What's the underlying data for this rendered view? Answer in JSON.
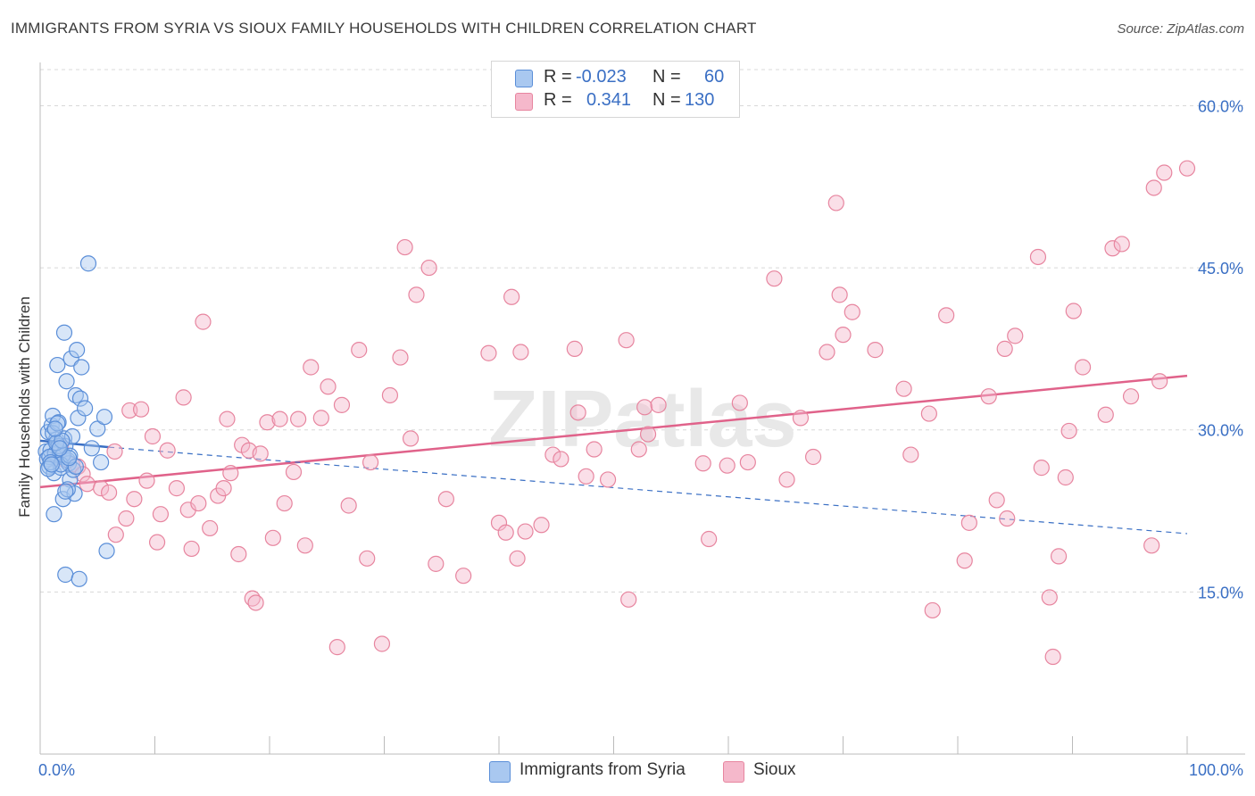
{
  "title": "IMMIGRANTS FROM SYRIA VS SIOUX FAMILY HOUSEHOLDS WITH CHILDREN CORRELATION CHART",
  "source": "Source: ZipAtlas.com",
  "watermark": "ZIPatlas",
  "legend": {
    "r_label": "R =",
    "n_label": "N =",
    "series1": {
      "r": "-0.023",
      "n": "60"
    },
    "series2": {
      "r": "0.341",
      "n": "130"
    }
  },
  "bottom_legend": {
    "series1": "Immigrants from Syria",
    "series2": "Sioux"
  },
  "colors": {
    "blue_fill": "#a9c8f0",
    "blue_stroke": "#5a8ed8",
    "blue_line": "#3a6fc4",
    "pink_fill": "#f5b8cb",
    "pink_stroke": "#e7859f",
    "pink_line": "#e0628a",
    "grid": "#d8d8d8",
    "axis_text": "#3a6fc4"
  },
  "chart_data": {
    "type": "scatter",
    "title": "IMMIGRANTS FROM SYRIA VS SIOUX FAMILY HOUSEHOLDS WITH CHILDREN CORRELATION CHART",
    "xlabel": "",
    "ylabel": "Family Households with Children",
    "xlim": [
      0,
      100
    ],
    "ylim": [
      0,
      64
    ],
    "x_tick_labels": [
      "0.0%",
      "100.0%"
    ],
    "y_ticks": [
      15,
      30,
      45,
      60
    ],
    "y_tick_labels": [
      "15.0%",
      "30.0%",
      "45.0%",
      "60.0%"
    ],
    "series": [
      {
        "name": "Immigrants from Syria",
        "r": -0.023,
        "n": 60,
        "trend_solid": [
          [
            0,
            29.0
          ],
          [
            6,
            28.4
          ]
        ],
        "trend_dashed": [
          [
            6,
            28.4
          ],
          [
            100,
            20.4
          ]
        ],
        "points": [
          [
            0.5,
            28
          ],
          [
            0.6,
            27.3
          ],
          [
            0.7,
            29.8
          ],
          [
            0.8,
            26.6
          ],
          [
            0.9,
            28.1
          ],
          [
            1,
            30.4
          ],
          [
            1.1,
            31.3
          ],
          [
            1.2,
            26
          ],
          [
            1.3,
            27.8
          ],
          [
            1.4,
            29.1
          ],
          [
            1.5,
            36
          ],
          [
            1.6,
            30.7
          ],
          [
            1.7,
            28
          ],
          [
            1.8,
            26.5
          ],
          [
            1.9,
            27.5
          ],
          [
            2,
            23.6
          ],
          [
            2.1,
            29.2
          ],
          [
            2.2,
            28.5
          ],
          [
            2.3,
            34.5
          ],
          [
            2.4,
            27.2
          ],
          [
            2.5,
            26.9
          ],
          [
            2.6,
            25.4
          ],
          [
            2.7,
            36.6
          ],
          [
            2.8,
            29.4
          ],
          [
            2.9,
            26.3
          ],
          [
            3,
            24.1
          ],
          [
            3.1,
            33.2
          ],
          [
            3.2,
            37.4
          ],
          [
            3.3,
            31.1
          ],
          [
            3.5,
            32.9
          ],
          [
            3.6,
            35.8
          ],
          [
            3.9,
            32
          ],
          [
            4.2,
            45.4
          ],
          [
            4.5,
            28.3
          ],
          [
            5,
            30.1
          ],
          [
            5.3,
            27
          ],
          [
            5.6,
            31.2
          ],
          [
            5.8,
            18.8
          ],
          [
            2.1,
            39
          ],
          [
            1.2,
            22.2
          ],
          [
            2.2,
            16.6
          ],
          [
            3.4,
            16.2
          ],
          [
            0.8,
            27.5
          ],
          [
            1.1,
            29.7
          ],
          [
            1.6,
            28.5
          ],
          [
            2,
            27.7
          ],
          [
            2.4,
            24.5
          ],
          [
            1.4,
            28.8
          ],
          [
            1.8,
            26.8
          ],
          [
            0.9,
            27
          ],
          [
            2.6,
            27.6
          ],
          [
            1.5,
            30.6
          ],
          [
            1.9,
            29
          ],
          [
            3.1,
            26.6
          ],
          [
            0.7,
            26.4
          ],
          [
            1.3,
            30.1
          ],
          [
            2.5,
            27.4
          ],
          [
            1,
            26.8
          ],
          [
            2.2,
            24.3
          ],
          [
            1.7,
            28.3
          ]
        ]
      },
      {
        "name": "Sioux",
        "r": 0.341,
        "n": 130,
        "trend": [
          [
            0,
            24.7
          ],
          [
            100,
            35.0
          ]
        ],
        "points": [
          [
            1.5,
            27.5
          ],
          [
            1.8,
            28.5
          ],
          [
            2.2,
            27.2
          ],
          [
            2.8,
            26.8
          ],
          [
            3.3,
            26.6
          ],
          [
            3.7,
            25.9
          ],
          [
            4.1,
            25
          ],
          [
            5.3,
            24.6
          ],
          [
            6,
            24.2
          ],
          [
            6.5,
            28
          ],
          [
            6.6,
            20.3
          ],
          [
            7.5,
            21.8
          ],
          [
            7.8,
            31.8
          ],
          [
            8.2,
            23.6
          ],
          [
            8.8,
            31.9
          ],
          [
            9.3,
            25.3
          ],
          [
            9.8,
            29.4
          ],
          [
            10.2,
            19.6
          ],
          [
            10.5,
            22.2
          ],
          [
            11.1,
            28.1
          ],
          [
            11.9,
            24.6
          ],
          [
            12.5,
            33
          ],
          [
            12.9,
            22.6
          ],
          [
            13.2,
            19
          ],
          [
            13.8,
            23.2
          ],
          [
            14.2,
            40
          ],
          [
            14.8,
            20.9
          ],
          [
            15.5,
            23.9
          ],
          [
            16,
            24.6
          ],
          [
            16.3,
            31
          ],
          [
            16.6,
            26
          ],
          [
            17.3,
            18.5
          ],
          [
            17.6,
            28.6
          ],
          [
            18.2,
            28.1
          ],
          [
            18.5,
            14.4
          ],
          [
            18.8,
            14
          ],
          [
            19.2,
            27.8
          ],
          [
            19.8,
            30.7
          ],
          [
            20.3,
            20
          ],
          [
            20.9,
            31
          ],
          [
            21.3,
            23.2
          ],
          [
            22.1,
            26.1
          ],
          [
            22.5,
            31
          ],
          [
            23.1,
            19.3
          ],
          [
            23.6,
            35.8
          ],
          [
            24.5,
            31.1
          ],
          [
            25.1,
            34
          ],
          [
            25.9,
            9.9
          ],
          [
            26.3,
            32.3
          ],
          [
            26.9,
            23
          ],
          [
            27.8,
            37.4
          ],
          [
            28.5,
            18.1
          ],
          [
            28.8,
            27
          ],
          [
            29.8,
            10.2
          ],
          [
            30.5,
            33.2
          ],
          [
            31.4,
            36.7
          ],
          [
            31.8,
            46.9
          ],
          [
            32.3,
            29.2
          ],
          [
            32.8,
            42.5
          ],
          [
            33.9,
            45
          ],
          [
            34.5,
            17.6
          ],
          [
            35.4,
            23.6
          ],
          [
            39.1,
            37.1
          ],
          [
            40,
            21.4
          ],
          [
            40.6,
            20.5
          ],
          [
            41.1,
            42.3
          ],
          [
            41.6,
            18.1
          ],
          [
            41.9,
            37.2
          ],
          [
            42.3,
            20.6
          ],
          [
            43.7,
            21.2
          ],
          [
            44.7,
            27.7
          ],
          [
            45.4,
            27.3
          ],
          [
            46.6,
            37.5
          ],
          [
            46.9,
            31.6
          ],
          [
            47.6,
            25.7
          ],
          [
            48.3,
            28.2
          ],
          [
            49.5,
            25.4
          ],
          [
            51.1,
            38.3
          ],
          [
            51.3,
            14.3
          ],
          [
            52.2,
            28.2
          ],
          [
            52.7,
            32.1
          ],
          [
            53,
            29.6
          ],
          [
            53.9,
            32.3
          ],
          [
            57.8,
            26.9
          ],
          [
            58.3,
            19.9
          ],
          [
            59.9,
            26.7
          ],
          [
            61,
            32.5
          ],
          [
            61.7,
            27
          ],
          [
            64,
            44
          ],
          [
            65.1,
            25.4
          ],
          [
            66.3,
            31.1
          ],
          [
            67.4,
            27.5
          ],
          [
            68.6,
            37.2
          ],
          [
            69.4,
            51
          ],
          [
            69.7,
            42.5
          ],
          [
            70,
            38.8
          ],
          [
            70.8,
            40.9
          ],
          [
            72.8,
            37.4
          ],
          [
            75.3,
            33.8
          ],
          [
            75.9,
            27.7
          ],
          [
            77.5,
            31.5
          ],
          [
            77.8,
            13.3
          ],
          [
            79,
            40.6
          ],
          [
            80.6,
            17.9
          ],
          [
            81,
            21.4
          ],
          [
            82.7,
            33.1
          ],
          [
            83.4,
            23.5
          ],
          [
            84.1,
            37.5
          ],
          [
            85,
            38.7
          ],
          [
            87,
            46
          ],
          [
            87.3,
            26.5
          ],
          [
            88,
            14.5
          ],
          [
            88.3,
            9
          ],
          [
            88.8,
            18.3
          ],
          [
            89.4,
            25.6
          ],
          [
            89.7,
            29.9
          ],
          [
            90.1,
            41
          ],
          [
            90.9,
            35.8
          ],
          [
            92.9,
            31.4
          ],
          [
            93.5,
            46.8
          ],
          [
            94.3,
            47.2
          ],
          [
            95.1,
            33.1
          ],
          [
            96.9,
            19.3
          ],
          [
            97.1,
            52.4
          ],
          [
            97.6,
            34.5
          ],
          [
            98,
            53.8
          ],
          [
            100,
            54.2
          ],
          [
            84.3,
            21.8
          ],
          [
            36.9,
            16.5
          ]
        ]
      }
    ]
  }
}
